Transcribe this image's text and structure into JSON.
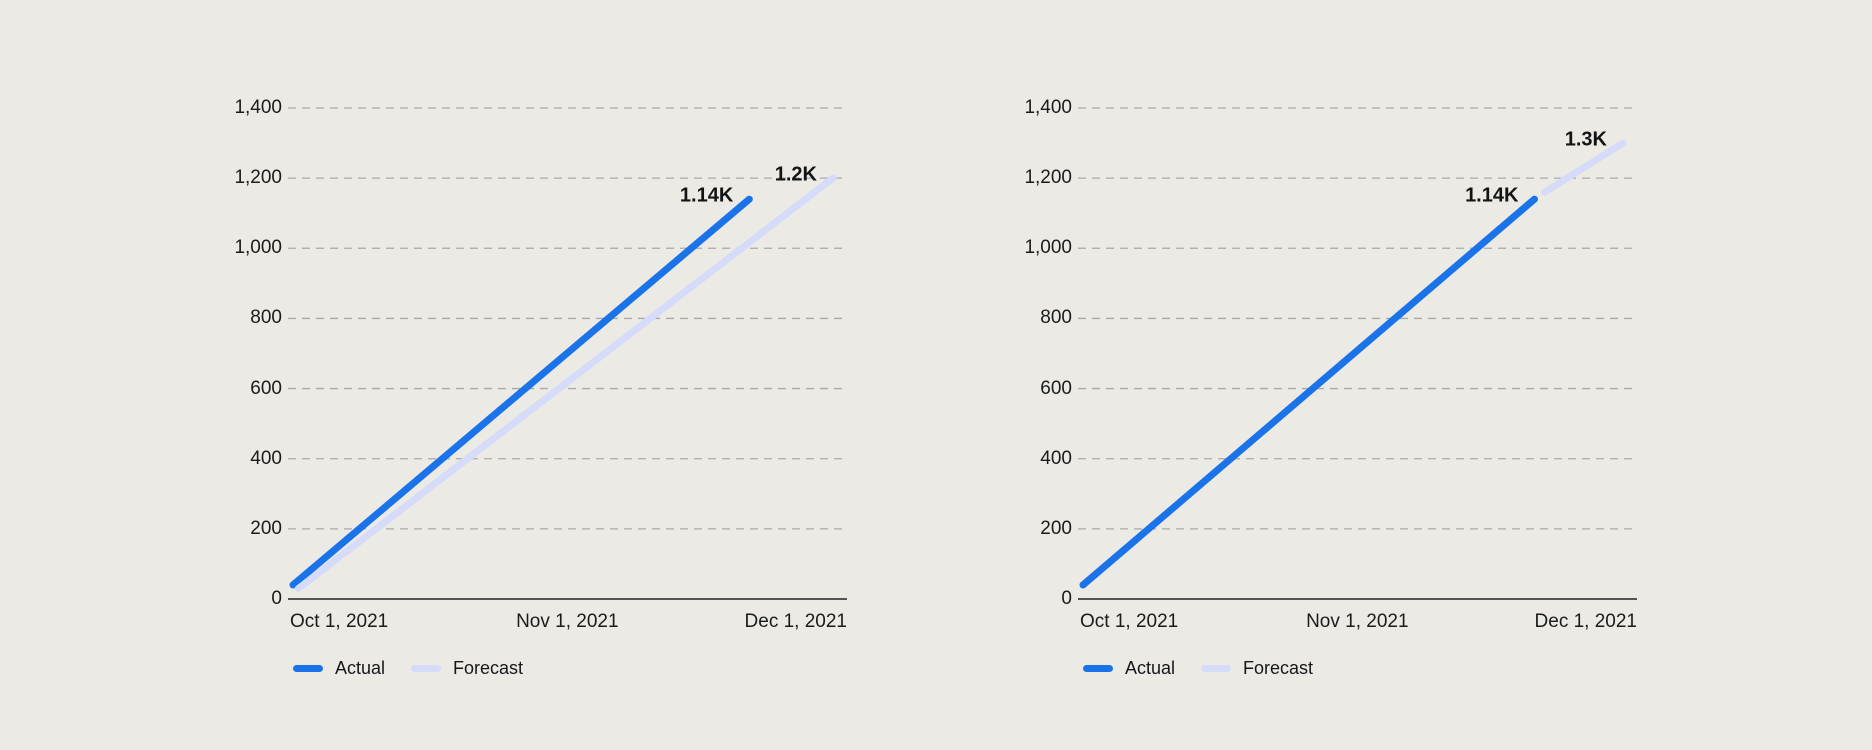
{
  "page": {
    "background": "#ECEAE5"
  },
  "colors": {
    "actual": "#1A73E8",
    "forecast": "#D5DBF8",
    "gridline": "#A7A9AC",
    "axis": "#202124",
    "tick_text": "#1B1B1C",
    "end_label_text": "#141414"
  },
  "chart_data": [
    {
      "type": "line",
      "title": "",
      "xlabel": "",
      "ylabel": "",
      "ylim": [
        0,
        1400
      ],
      "y_tick_labels": [
        "1,400",
        "1,200",
        "1,000",
        "800",
        "600",
        "400",
        "200",
        "0"
      ],
      "x_tick_labels": [
        "Oct 1, 2021",
        "Nov 1, 2021",
        "Dec 1, 2021"
      ],
      "grid": "horizontal-dashed",
      "legend_position": "bottom-left",
      "series": [
        {
          "name": "Actual",
          "color": "#1A73E8",
          "end_label": "1.14K",
          "points": [
            {
              "x": "Oct 1, 2021",
              "y": 40,
              "x_frac": 0.0
            },
            {
              "x": "Nov 21, 2021",
              "y": 1140,
              "x_frac": 0.845
            }
          ]
        },
        {
          "name": "Forecast",
          "color": "#D5DBF8",
          "end_label": "1.2K",
          "points": [
            {
              "x": "Oct 1, 2021",
              "y": 30,
              "x_frac": 0.01
            },
            {
              "x": "Dec 1, 2021",
              "y": 1200,
              "x_frac": 1.0
            }
          ]
        }
      ]
    },
    {
      "type": "line",
      "title": "",
      "xlabel": "",
      "ylabel": "",
      "ylim": [
        0,
        1400
      ],
      "y_tick_labels": [
        "1,400",
        "1,200",
        "1,000",
        "800",
        "600",
        "400",
        "200",
        "0"
      ],
      "x_tick_labels": [
        "Oct 1, 2021",
        "Nov 1, 2021",
        "Dec 1, 2021"
      ],
      "grid": "horizontal-dashed",
      "legend_position": "bottom-left",
      "series": [
        {
          "name": "Actual",
          "color": "#1A73E8",
          "end_label": "1.14K",
          "points": [
            {
              "x": "Oct 1, 2021",
              "y": 40,
              "x_frac": 0.0
            },
            {
              "x": "Nov 21, 2021",
              "y": 1140,
              "x_frac": 0.836
            }
          ]
        },
        {
          "name": "Forecast",
          "color": "#D5DBF8",
          "end_label": "1.3K",
          "points": [
            {
              "x": "Nov 22, 2021",
              "y": 1160,
              "x_frac": 0.855
            },
            {
              "x": "Dec 1, 2021",
              "y": 1300,
              "x_frac": 1.0
            }
          ]
        }
      ]
    }
  ]
}
